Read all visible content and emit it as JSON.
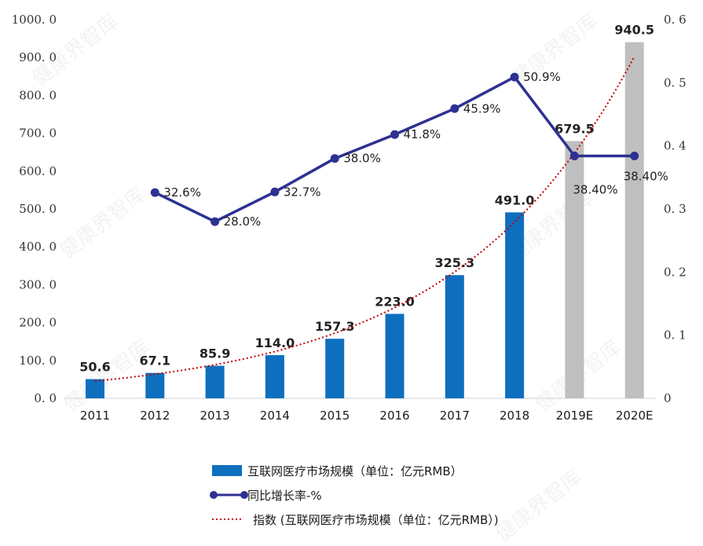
{
  "chart_data": {
    "type": "bar",
    "categories": [
      "2011",
      "2012",
      "2013",
      "2014",
      "2015",
      "2016",
      "2017",
      "2018",
      "2019E",
      "2020E"
    ],
    "series": [
      {
        "name": "互联网医疗市场规模（单位：亿元RMB）",
        "type": "bar",
        "axis": "left",
        "values": [
          50.6,
          67.1,
          85.9,
          114.0,
          157.3,
          223.0,
          325.3,
          491.0,
          679.5,
          940.5
        ],
        "labels": [
          "50.6",
          "67.1",
          "85.9",
          "114.0",
          "157.3",
          "223.0",
          "325.3",
          "491.0",
          "679.5",
          "940.5"
        ],
        "colors": [
          "#0e6fbf",
          "#0e6fbf",
          "#0e6fbf",
          "#0e6fbf",
          "#0e6fbf",
          "#0e6fbf",
          "#0e6fbf",
          "#0e6fbf",
          "#bfbfbf",
          "#bfbfbf"
        ]
      },
      {
        "name": "同比增长率-%",
        "type": "line",
        "axis": "right",
        "values": [
          null,
          0.326,
          0.28,
          0.327,
          0.38,
          0.418,
          0.459,
          0.509,
          0.384,
          0.384
        ],
        "labels": [
          "",
          "32.6%",
          "28.0%",
          "32.7%",
          "38.0%",
          "41.8%",
          "45.9%",
          "50.9%",
          "38.40%",
          "38.40%"
        ],
        "color": "#2e3192"
      },
      {
        "name": "指数 (互联网医疗市场规模（单位：亿元RMB）)",
        "type": "trendline-exponential",
        "axis": "left",
        "color": "#c00000"
      }
    ],
    "y_left": {
      "range": [
        0,
        1000
      ],
      "ticks": [
        "0. 0",
        "100. 0",
        "200. 0",
        "300. 0",
        "400. 0",
        "500. 0",
        "600. 0",
        "700. 0",
        "800. 0",
        "900. 0",
        "1000. 0"
      ]
    },
    "y_right": {
      "range": [
        0,
        0.6
      ],
      "ticks": [
        "0",
        "0. 1",
        "0. 2",
        "0. 3",
        "0. 4",
        "0. 5",
        "0. 6"
      ]
    },
    "grid": false,
    "legend": "bottom",
    "watermark": "健康界智库"
  }
}
